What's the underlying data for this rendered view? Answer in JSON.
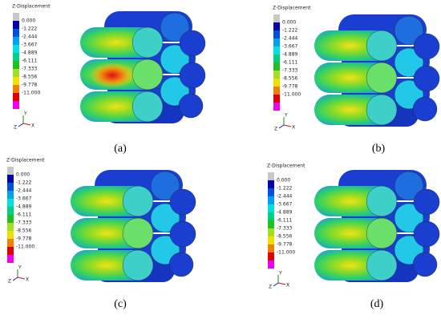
{
  "panels": [
    {
      "legend_title": "Z-Displacement",
      "legend_labels": [
        "0.000",
        "-1.222",
        "-2.444",
        "-3.667",
        "-4.889",
        "-6.111",
        "-7.333",
        "-8.556",
        "-9.778",
        "-11.000"
      ],
      "triad": [
        "Y",
        "Z",
        "X"
      ],
      "caption": "(a)"
    },
    {
      "legend_title": "Z-Displacement",
      "legend_labels": [
        "0.000",
        "-1.222",
        "-2.444",
        "-3.667",
        "-4.889",
        "-6.111",
        "-7.333",
        "-8.556",
        "-9.778",
        "-11.000"
      ],
      "triad": [
        "Y",
        "Z",
        "X"
      ],
      "caption": "(b)"
    },
    {
      "legend_title": "Z-Displacement",
      "legend_labels": [
        "0.000",
        "-1.222",
        "-2.444",
        "-3.667",
        "-4.889",
        "-6.111",
        "-7.333",
        "-8.556",
        "-9.778",
        "-11.000"
      ],
      "triad": [
        "Y",
        "Z",
        "X"
      ],
      "caption": "(c)"
    },
    {
      "legend_title": "Z-Displacement",
      "legend_labels": [
        "0.000",
        "-1.222",
        "-2.444",
        "-3.667",
        "-4.889",
        "-6.111",
        "-7.333",
        "-8.556",
        "-9.778",
        "-11.000"
      ],
      "triad": [
        "Y",
        "Z",
        "X"
      ],
      "caption": "(d)"
    }
  ]
}
